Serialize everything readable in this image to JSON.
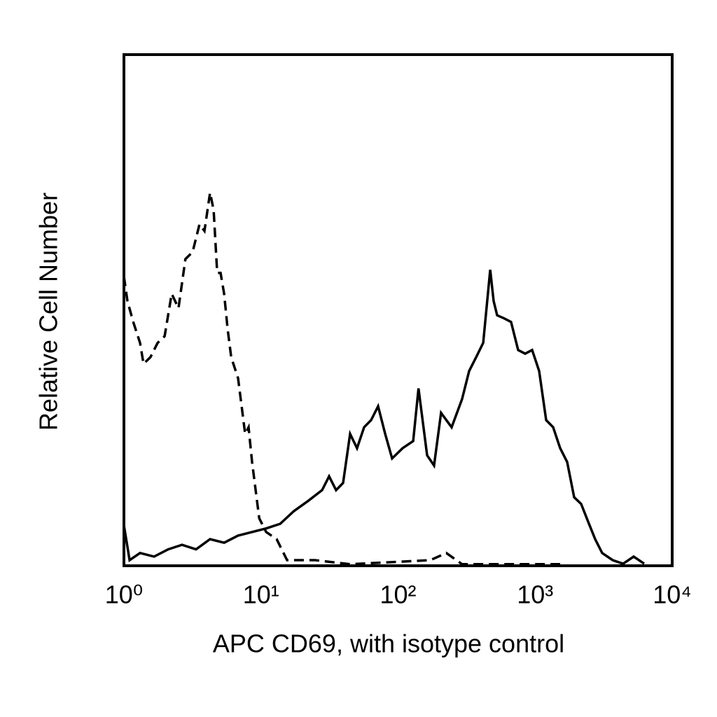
{
  "chart_data": {
    "type": "line",
    "xlabel": "APC CD69, with isotype control",
    "ylabel": "Relative Cell Number",
    "xscale": "log",
    "xlim": [
      1,
      10000
    ],
    "xticks": [
      {
        "value": 1,
        "label": "10⁰"
      },
      {
        "value": 10,
        "label": "10¹"
      },
      {
        "value": 100,
        "label": "10²"
      },
      {
        "value": 1000,
        "label": "10³"
      },
      {
        "value": 10000,
        "label": "10⁴"
      }
    ],
    "ylim": [
      0,
      100
    ],
    "grid": false,
    "series": [
      {
        "color": "#000000",
        "linestyle": "solid",
        "x": [
          1.0,
          1.1,
          1.31,
          1.66,
          2.1,
          2.65,
          3.36,
          4.25,
          5.38,
          6.8,
          8.61,
          10.9,
          13.8,
          17.4,
          22.1,
          27.9,
          31.4,
          35.3,
          39.7,
          44.7,
          50.2,
          56.5,
          63.6,
          71.5,
          80.5,
          90.5,
          108,
          129,
          141,
          163,
          183,
          206,
          246,
          293,
          330,
          371,
          418,
          470,
          498,
          528,
          594,
          668,
          752,
          846,
          951,
          1070,
          1204,
          1354,
          1523,
          1713,
          1927,
          2168,
          2438,
          2743,
          3085,
          3679,
          4390,
          5236,
          6248
        ],
        "values": [
          7.9,
          1.1,
          2.5,
          1.8,
          3.2,
          4.1,
          3.2,
          5.2,
          4.5,
          5.9,
          6.6,
          7.3,
          8.2,
          10.7,
          12.7,
          14.8,
          17.5,
          14.8,
          16.2,
          25.8,
          23.0,
          27.1,
          28.5,
          31.2,
          25.8,
          21.0,
          23.0,
          24.4,
          34.7,
          21.6,
          19.6,
          29.9,
          27.1,
          32.6,
          38.1,
          40.8,
          43.6,
          57.9,
          51.8,
          49.0,
          48.4,
          47.7,
          42.2,
          41.5,
          42.2,
          38.1,
          28.5,
          27.1,
          23.0,
          20.3,
          13.4,
          12.1,
          8.6,
          5.2,
          2.5,
          1.1,
          0.4,
          1.8,
          0.4
        ]
      },
      {
        "color": "#000000",
        "linestyle": "dashed",
        "x": [
          1.0,
          1.06,
          1.17,
          1.31,
          1.39,
          1.56,
          1.76,
          1.98,
          2.23,
          2.5,
          2.81,
          3.17,
          3.56,
          3.87,
          4.25,
          4.51,
          4.79,
          5.07,
          5.38,
          5.71,
          6.06,
          6.8,
          7.22,
          7.66,
          8.12,
          8.61,
          9.14,
          9.7,
          10.9,
          13.0,
          15.5,
          24.8,
          44.7,
          172,
          225,
          293,
          1523
        ],
        "values": [
          56.6,
          51.8,
          47.7,
          43.6,
          39.5,
          40.8,
          43.6,
          44.9,
          53.2,
          50.4,
          60.0,
          61.4,
          66.8,
          65.5,
          73.0,
          69.6,
          57.3,
          57.3,
          53.2,
          46.3,
          40.8,
          36.7,
          31.2,
          25.8,
          27.1,
          20.3,
          14.8,
          9.3,
          6.6,
          5.2,
          1.1,
          1.1,
          0.3,
          1.1,
          2.5,
          0.3,
          0.3
        ]
      }
    ]
  }
}
